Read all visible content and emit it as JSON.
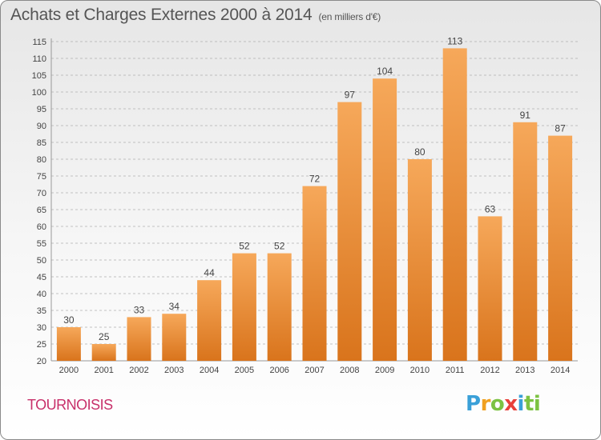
{
  "header": {
    "title": "Achats et Charges Externes 2000 à 2014",
    "subtitle": "(en milliers d'€)"
  },
  "footer": {
    "commune": "TOURNOISIS",
    "logo_text": "Proxiti"
  },
  "colors": {
    "bar_top": "#f6a85a",
    "bar_bottom": "#d9741c",
    "grid": "#b0b0b0",
    "commune": "#c8306a",
    "text": "#444444"
  },
  "chart_data": {
    "type": "bar",
    "categories": [
      "2000",
      "2001",
      "2002",
      "2003",
      "2004",
      "2005",
      "2006",
      "2007",
      "2008",
      "2009",
      "2010",
      "2011",
      "2012",
      "2013",
      "2014"
    ],
    "values": [
      30,
      25,
      33,
      34,
      44,
      52,
      52,
      72,
      97,
      104,
      80,
      113,
      63,
      91,
      87
    ],
    "ylim": [
      20,
      115
    ],
    "yticks": [
      20,
      25,
      30,
      35,
      40,
      45,
      50,
      55,
      60,
      65,
      70,
      75,
      80,
      85,
      90,
      95,
      100,
      105,
      110,
      115
    ],
    "grid": true,
    "data_labels": true
  }
}
